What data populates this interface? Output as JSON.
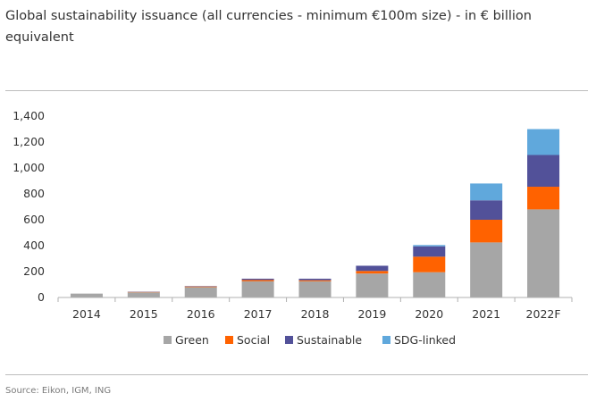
{
  "title": "Global sustainability issuance (all currencies - minimum €100m size) - in € billion equivalent",
  "source": "Source: Eikon, IGM, ING",
  "colors": {
    "Green": "#a6a6a6",
    "Social": "#ff6200",
    "Sustainable": "#525199",
    "SDG-linked": "#60a8dc",
    "axis": "#b0b0b0",
    "text": "#333333"
  },
  "chart_data": {
    "type": "bar",
    "stacked": true,
    "categories": [
      "2014",
      "2015",
      "2016",
      "2017",
      "2018",
      "2019",
      "2020",
      "2021",
      "2022F"
    ],
    "series": [
      {
        "name": "Green",
        "values": [
          30,
          40,
          80,
          125,
          125,
          185,
          195,
          425,
          680
        ]
      },
      {
        "name": "Social",
        "values": [
          0,
          3,
          5,
          10,
          8,
          20,
          120,
          175,
          175
        ]
      },
      {
        "name": "Sustainable",
        "values": [
          0,
          2,
          3,
          10,
          12,
          40,
          80,
          150,
          245
        ]
      },
      {
        "name": "SDG-linked",
        "values": [
          0,
          0,
          0,
          0,
          0,
          0,
          10,
          130,
          200
        ]
      }
    ],
    "ylim": [
      0,
      1400
    ],
    "yticks": [
      "0",
      "200",
      "400",
      "600",
      "800",
      "1,000",
      "1,200",
      "1,400"
    ],
    "legend_position": "bottom",
    "grid": false
  }
}
